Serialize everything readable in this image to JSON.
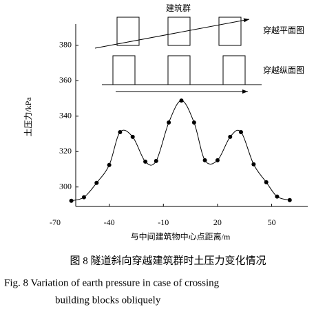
{
  "chart_data": {
    "type": "line",
    "ylabel": "土压力/kPa",
    "xlabel": "与中间建筑物中心点距离/m",
    "annotations": [
      "建筑群",
      "穿越平面图",
      "穿越纵面图"
    ],
    "x": [
      -61,
      -54,
      -47,
      -40,
      -34,
      -27,
      -20,
      -14,
      -7,
      0,
      7,
      13,
      20,
      27,
      33,
      40,
      47,
      53,
      60
    ],
    "series": [
      {
        "color": "#000000",
        "values": [
          292.2,
          294.2,
          302.3,
          312.4,
          331,
          328.3,
          314.3,
          314.7,
          336.4,
          348.8,
          336.4,
          315.1,
          315.1,
          328.3,
          331,
          312.8,
          302.7,
          294.6,
          292.6
        ]
      }
    ],
    "xlim": [
      -70,
      70
    ],
    "xticks": [
      -70,
      -40,
      -10,
      20,
      50
    ],
    "ylim": [
      289,
      392
    ],
    "yticks": [
      300,
      320,
      340,
      360,
      380
    ]
  },
  "caption": {
    "cn": "图 8   隧道斜向穿越建筑群时土压力变化情况",
    "en_line1": "Fig. 8   Variation of earth pressure in case of crossing",
    "en_line2": "building blocks obliquely"
  }
}
